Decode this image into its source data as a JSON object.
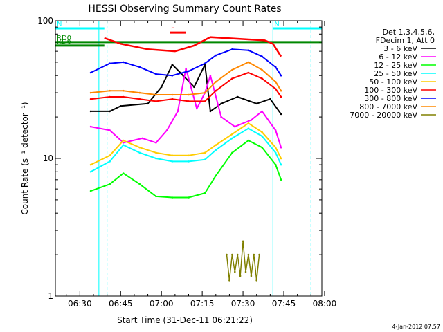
{
  "chart_data": {
    "type": "line",
    "title": "HESSI Observing Summary Count Rates",
    "xlabel": "Start Time (31-Dec-11 06:21:22)",
    "ylabel": "Count Rate (s⁻¹ detector⁻¹)",
    "ylim": [
      1,
      100
    ],
    "yscale": "log",
    "xlim": [
      "06:21",
      "07:59"
    ],
    "x_ticks": [
      "06:30",
      "06:45",
      "07:00",
      "07:15",
      "07:30",
      "07:45",
      "08:00"
    ],
    "y_ticks": [
      "1",
      "10",
      "100"
    ],
    "legend_header": [
      "Det 1,3,4,5,6,",
      "FDecim 1, Att 0"
    ],
    "legend_placement": "right",
    "timestamp": "4-Jan-2012 07:57",
    "series": [
      {
        "name": "3 - 6 keV",
        "color": "#000000",
        "x": [
          "06:34",
          "06:41",
          "06:45",
          "06:55",
          "07:00",
          "07:04",
          "07:08",
          "07:12",
          "07:16",
          "07:18",
          "07:22",
          "07:28",
          "07:35",
          "07:40",
          "07:44"
        ],
        "y": [
          22,
          22,
          24,
          25,
          33,
          48,
          40,
          33,
          48,
          22,
          25,
          28,
          25,
          27,
          21
        ]
      },
      {
        "name": "6 - 12 keV",
        "color": "#ff00ff",
        "x": [
          "06:34",
          "06:41",
          "06:46",
          "06:53",
          "06:58",
          "07:02",
          "07:06",
          "07:09",
          "07:13",
          "07:16",
          "07:18",
          "07:22",
          "07:27",
          "07:33",
          "07:37",
          "07:42",
          "07:44"
        ],
        "y": [
          17,
          16,
          13,
          14,
          13,
          16,
          22,
          45,
          23,
          30,
          40,
          20,
          17,
          19,
          22,
          16,
          12
        ]
      },
      {
        "name": "12 - 25 keV",
        "color": "#00ff00",
        "x": [
          "06:34",
          "06:41",
          "06:46",
          "06:52",
          "06:58",
          "07:04",
          "07:10",
          "07:16",
          "07:20",
          "07:26",
          "07:32",
          "07:37",
          "07:42",
          "07:44"
        ],
        "y": [
          5.8,
          6.5,
          7.8,
          6.5,
          5.3,
          5.2,
          5.2,
          5.6,
          7.5,
          11,
          13.5,
          12,
          9,
          7
        ]
      },
      {
        "name": "25 - 50 keV",
        "color": "#00ffff",
        "x": [
          "06:34",
          "06:41",
          "06:46",
          "06:52",
          "06:58",
          "07:04",
          "07:10",
          "07:16",
          "07:20",
          "07:26",
          "07:32",
          "07:37",
          "07:42",
          "07:44"
        ],
        "y": [
          8,
          9.5,
          12.5,
          11,
          10,
          9.5,
          9.5,
          9.8,
          11.5,
          14,
          16.5,
          14.5,
          11,
          9
        ]
      },
      {
        "name": "50 - 100 keV",
        "color": "#ffcc00",
        "x": [
          "06:34",
          "06:41",
          "06:46",
          "06:52",
          "06:58",
          "07:04",
          "07:10",
          "07:16",
          "07:20",
          "07:26",
          "07:32",
          "07:37",
          "07:42",
          "07:44"
        ],
        "y": [
          9,
          10.5,
          13.5,
          12,
          11,
          10.5,
          10.5,
          11,
          12.5,
          15,
          18,
          15.5,
          12,
          10
        ]
      },
      {
        "name": "100 - 300 keV",
        "color": "#ff0000",
        "x": [
          "06:34",
          "06:41",
          "06:46",
          "06:52",
          "06:58",
          "07:04",
          "07:10",
          "07:16",
          "07:20",
          "07:26",
          "07:32",
          "07:37",
          "07:42",
          "07:44"
        ],
        "y": [
          27,
          28,
          28,
          27,
          26,
          27,
          26,
          26,
          31,
          38,
          42,
          38,
          32,
          28
        ]
      },
      {
        "name": "300 - 800 keV",
        "color": "#0000ff",
        "x": [
          "06:34",
          "06:41",
          "06:46",
          "06:52",
          "06:58",
          "07:04",
          "07:10",
          "07:16",
          "07:20",
          "07:26",
          "07:32",
          "07:37",
          "07:42",
          "07:44"
        ],
        "y": [
          42,
          49,
          50,
          46,
          41,
          40,
          43,
          49,
          56,
          62,
          61,
          55,
          46,
          40
        ]
      },
      {
        "name": "800 - 7000 keV",
        "color": "#ff8800",
        "x": [
          "06:34",
          "06:41",
          "06:46",
          "06:52",
          "06:58",
          "07:04",
          "07:10",
          "07:16",
          "07:20",
          "07:26",
          "07:32",
          "07:37",
          "07:42",
          "07:44"
        ],
        "y": [
          30,
          31,
          31,
          30,
          29,
          29,
          29,
          30,
          36,
          44,
          50,
          44,
          36,
          31
        ]
      },
      {
        "name": "7000 - 20000 keV",
        "color": "#808000",
        "x": [
          "07:24",
          "07:25",
          "07:26",
          "07:27",
          "07:28",
          "07:29",
          "07:30",
          "07:31",
          "07:32",
          "07:33",
          "07:34",
          "07:35",
          "07:36"
        ],
        "y": [
          2.0,
          1.3,
          2.0,
          1.5,
          2.0,
          1.4,
          2.5,
          1.5,
          2.0,
          1.4,
          2.0,
          1.3,
          2.0
        ]
      }
    ],
    "attenuator_upper": {
      "color": "#ff0000",
      "x": [
        "06:39",
        "06:45",
        "06:55",
        "07:05",
        "07:12",
        "07:18",
        "07:38",
        "07:41",
        "07:44"
      ],
      "y": [
        75,
        68,
        62,
        60,
        66,
        76,
        72,
        68,
        55
      ]
    },
    "state_bars": [
      {
        "label": "N",
        "color": "#00ffff",
        "x_start": "06:21",
        "x_end": "06:39",
        "y": 88
      },
      {
        "label": "N",
        "color": "#00ffff",
        "x_start": "07:41",
        "x_end": "07:59",
        "y": 88
      },
      {
        "label": "RD0",
        "color": "#008800",
        "x_start": "06:21",
        "x_end": "07:59",
        "y": 70
      },
      {
        "label": "RD6",
        "color": "#008800",
        "x_start": "06:21",
        "x_end": "06:39",
        "y": 66
      },
      {
        "label": "F",
        "color": "#ff0000",
        "x_start": "07:03",
        "x_end": "07:09",
        "y": 82
      }
    ],
    "vertical_markers": [
      {
        "x": "06:37",
        "style": "solid",
        "color": "#00ffff"
      },
      {
        "x": "06:40",
        "style": "dashed",
        "color": "#00ffff"
      },
      {
        "x": "07:41",
        "style": "solid",
        "color": "#00ffff"
      },
      {
        "x": "07:55",
        "style": "dashed",
        "color": "#00ffff"
      }
    ]
  }
}
